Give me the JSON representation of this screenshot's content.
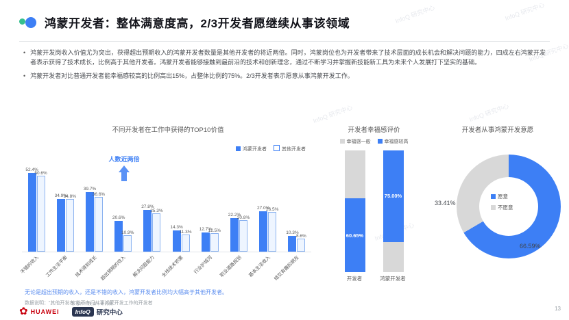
{
  "slide": {
    "title": "鸿蒙开发者：整体满意度高，2/3开发者愿继续从事该领域",
    "page_number": "13",
    "bullets": [
      "鸿蒙开发岗收入价值尤为突出，获得超出预期收入的鸿蒙开发者数量是其他开发者的将近两倍。同时，鸿蒙岗位也为开发者带来了技术层面的成长机会和解决问题的能力，四成左右鸿蒙开发者表示获得了技术成长，比例高于其他开发者。鸿蒙开发者能够接触到最前沿的技术和创新理念，通过不断学习并掌握新技能新工具为未来个人发展打下坚实的基础。",
      "鸿蒙开发者对比普通开发者能幸福感较高的比例高出15%，占整体比例的75%。2/3开发者表示愿意从事鸿蒙开发工作。"
    ],
    "note": "无论是超出预期的收入，还是不错的收入，鸿蒙开发者比例均大幅高于其他开发者。",
    "footnote": "数据说明：“其他开发者”指不专门从事鸿蒙开发工作的开发者",
    "watermark": "InfoQ 研究中心"
  },
  "footer": {
    "huawei": "HUAWEI",
    "infoq": "InfoQ",
    "research_center": "研究中心",
    "tagline": "极客邦科技旗下研究院"
  },
  "colors": {
    "accent_blue": "#3D7FF5",
    "outline_fill": "#EEF5FF",
    "gray": "#D8D8D8",
    "note_blue": "#5B8DEF",
    "huawei_red": "#C8000D",
    "infoq_navy": "#2A3550",
    "green_dot": "#35C08E"
  },
  "chart_data": [
    {
      "type": "bar",
      "title": "不同开发者在工作中获得的TOP10价值",
      "categories": [
        "不错的收入",
        "工作生活平衡",
        "技术得到成长",
        "超出预期的收入",
        "解决问题能力",
        "全栈技术积累",
        "行业护城河",
        "职业道路规划",
        "基本生活收入",
        "结交有趣的朋友"
      ],
      "series": [
        {
          "name": "鸿蒙开发者",
          "values": [
            52.4,
            34.9,
            39.7,
            20.6,
            27.8,
            14.3,
            12.7,
            22.2,
            27.0,
            10.3
          ]
        },
        {
          "name": "其他开发者",
          "values": [
            50.6,
            34.8,
            36.6,
            10.9,
            25.3,
            11.3,
            12.5,
            20.8,
            26.5,
            8.6
          ]
        }
      ],
      "annotation": "人数近两倍",
      "ylim": [
        0,
        60
      ],
      "value_suffix": "%",
      "legend_position": "top-right",
      "grid": false
    },
    {
      "type": "bar",
      "subtype": "stacked",
      "title": "开发者幸福感评价",
      "categories": [
        "开发者",
        "鸿蒙开发者"
      ],
      "series": [
        {
          "name": "幸福感一般",
          "values": [
            39.35,
            25.0
          ]
        },
        {
          "name": "幸福感较高",
          "values": [
            60.65,
            75.0
          ]
        }
      ],
      "labels": [
        "60.65%",
        "75.00%"
      ],
      "ylim": [
        0,
        100
      ],
      "legend_position": "top"
    },
    {
      "type": "pie",
      "title": "开发者从事鸿蒙开发意愿",
      "slices": [
        {
          "label": "愿意",
          "value": 66.59
        },
        {
          "label": "不愿意",
          "value": 33.41
        }
      ],
      "donut": true,
      "legend_position": "center"
    }
  ]
}
